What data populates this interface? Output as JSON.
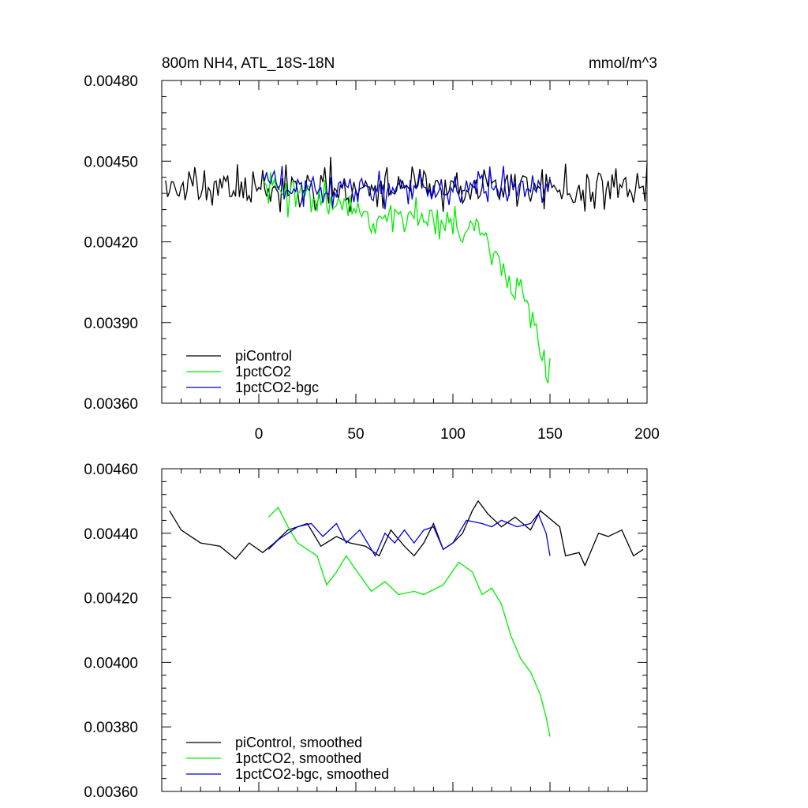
{
  "colors": {
    "picontrol": "#000000",
    "onepct": "#00ee00",
    "bgc": "#0000dd"
  },
  "chart_data": [
    {
      "type": "line",
      "title_left": "800m NH4, ATL_18S-18N",
      "title_right": "mmol/m^3",
      "xlim": [
        -50,
        200
      ],
      "ylim": [
        0.0036,
        0.0048
      ],
      "y_ticks": [
        "0.00360",
        "0.00390",
        "0.00420",
        "0.00450",
        "0.00480"
      ],
      "x_ticks": [
        "0",
        "50",
        "100",
        "150",
        "200"
      ],
      "legend": [
        "piControl",
        "1pctCO2",
        "1pctCO2-bgc"
      ],
      "series": [
        {
          "name": "piControl",
          "x_start": -48,
          "x_end": 200,
          "mean": 0.0044,
          "noise": 0.00012,
          "trend": [],
          "seed": 11
        },
        {
          "name": "1pctCO2",
          "x_start": 2,
          "x_end": 150,
          "mean": 0.00438,
          "noise": 0.00011,
          "trend": [
            [
              2,
              0.0044
            ],
            [
              80,
              0.00428
            ],
            [
              115,
              0.00425
            ],
            [
              125,
              0.0041
            ],
            [
              140,
              0.00395
            ],
            [
              150,
              0.0037
            ]
          ],
          "seed": 23
        },
        {
          "name": "1pctCO2-bgc",
          "x_start": 2,
          "x_end": 150,
          "mean": 0.0044,
          "noise": 0.0001,
          "trend": [],
          "seed": 37
        }
      ]
    },
    {
      "type": "line",
      "xlim": [
        -50,
        200
      ],
      "ylim": [
        0.0036,
        0.0046
      ],
      "y_ticks": [
        "0.00360",
        "0.00380",
        "0.00400",
        "0.00420",
        "0.00440",
        "0.00460"
      ],
      "legend": [
        "piControl, smoothed",
        "1pctCO2, smoothed",
        "1pctCO2-bgc, smoothed"
      ],
      "series": [
        {
          "name": "piControl, smoothed",
          "points": [
            [
              -46,
              0.00447
            ],
            [
              -40,
              0.00441
            ],
            [
              -35,
              0.00439
            ],
            [
              -30,
              0.00437
            ],
            [
              -20,
              0.00436
            ],
            [
              -12,
              0.00432
            ],
            [
              -5,
              0.00437
            ],
            [
              2,
              0.00434
            ],
            [
              8,
              0.00437
            ],
            [
              15,
              0.00441
            ],
            [
              25,
              0.00443
            ],
            [
              32,
              0.00436
            ],
            [
              40,
              0.00439
            ],
            [
              47,
              0.00437
            ],
            [
              55,
              0.00436
            ],
            [
              62,
              0.00433
            ],
            [
              68,
              0.00441
            ],
            [
              75,
              0.00436
            ],
            [
              80,
              0.00433
            ],
            [
              85,
              0.00437
            ],
            [
              90,
              0.00443
            ],
            [
              95,
              0.00435
            ],
            [
              100,
              0.00437
            ],
            [
              105,
              0.0044
            ],
            [
              110,
              0.00447
            ],
            [
              113,
              0.0045
            ],
            [
              118,
              0.00446
            ],
            [
              125,
              0.00442
            ],
            [
              132,
              0.00445
            ],
            [
              140,
              0.00441
            ],
            [
              145,
              0.00447
            ],
            [
              155,
              0.00442
            ],
            [
              158,
              0.00433
            ],
            [
              165,
              0.00434
            ],
            [
              168,
              0.0043
            ],
            [
              175,
              0.0044
            ],
            [
              180,
              0.00439
            ],
            [
              187,
              0.00441
            ],
            [
              193,
              0.00433
            ],
            [
              198,
              0.00435
            ]
          ]
        },
        {
          "name": "1pctCO2, smoothed",
          "points": [
            [
              5,
              0.00445
            ],
            [
              10,
              0.00448
            ],
            [
              15,
              0.00442
            ],
            [
              20,
              0.00437
            ],
            [
              30,
              0.00433
            ],
            [
              35,
              0.00424
            ],
            [
              40,
              0.00428
            ],
            [
              45,
              0.00433
            ],
            [
              52,
              0.00427
            ],
            [
              58,
              0.00422
            ],
            [
              65,
              0.00425
            ],
            [
              72,
              0.00421
            ],
            [
              80,
              0.00422
            ],
            [
              85,
              0.00421
            ],
            [
              95,
              0.00424
            ],
            [
              103,
              0.00431
            ],
            [
              110,
              0.00428
            ],
            [
              115,
              0.00421
            ],
            [
              120,
              0.00423
            ],
            [
              125,
              0.00418
            ],
            [
              130,
              0.00408
            ],
            [
              135,
              0.00401
            ],
            [
              140,
              0.00397
            ],
            [
              145,
              0.0039
            ],
            [
              148,
              0.00383
            ],
            [
              150,
              0.00377
            ]
          ]
        },
        {
          "name": "1pctCO2-bgc, smoothed",
          "points": [
            [
              5,
              0.00435
            ],
            [
              10,
              0.00438
            ],
            [
              15,
              0.0044
            ],
            [
              20,
              0.00442
            ],
            [
              27,
              0.00443
            ],
            [
              33,
              0.00439
            ],
            [
              40,
              0.00443
            ],
            [
              45,
              0.00437
            ],
            [
              52,
              0.00441
            ],
            [
              60,
              0.00433
            ],
            [
              65,
              0.0044
            ],
            [
              70,
              0.00437
            ],
            [
              75,
              0.00441
            ],
            [
              80,
              0.00437
            ],
            [
              85,
              0.00441
            ],
            [
              90,
              0.00442
            ],
            [
              95,
              0.00435
            ],
            [
              100,
              0.00437
            ],
            [
              107,
              0.00444
            ],
            [
              115,
              0.00443
            ],
            [
              120,
              0.00442
            ],
            [
              125,
              0.00444
            ],
            [
              133,
              0.00442
            ],
            [
              140,
              0.00443
            ],
            [
              144,
              0.00446
            ],
            [
              148,
              0.0044
            ],
            [
              150,
              0.00433
            ]
          ]
        }
      ]
    }
  ]
}
